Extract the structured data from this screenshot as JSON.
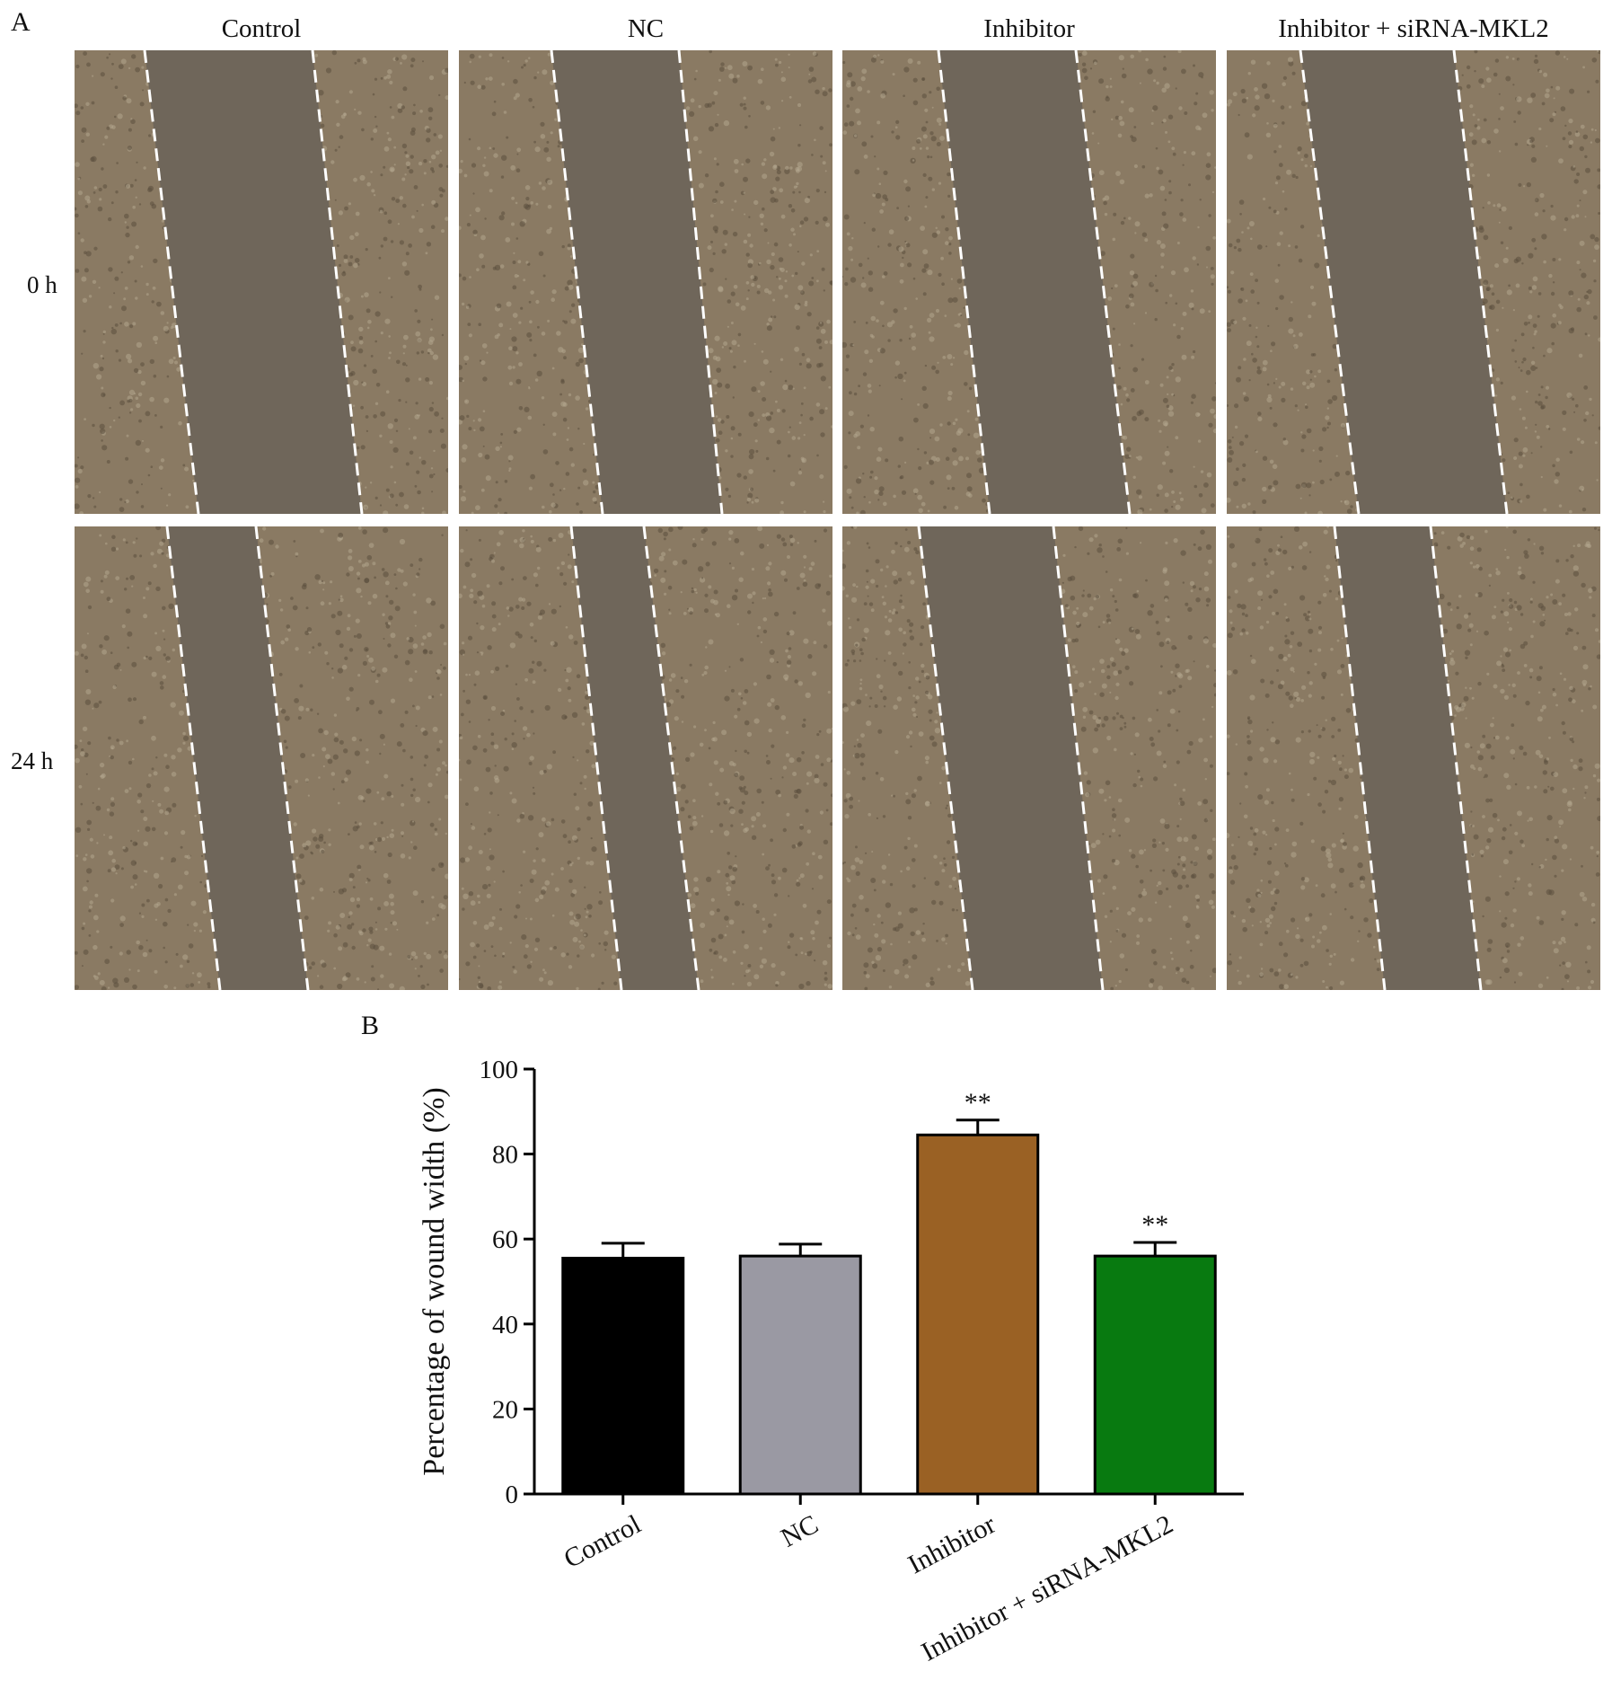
{
  "panel_a": {
    "letter": "A",
    "columns": [
      "Control",
      "NC",
      "Inhibitor",
      "Inhibitor + siRNA-MKL2"
    ],
    "rows": [
      "0 h",
      "24 h"
    ]
  },
  "panel_b": {
    "letter": "B"
  },
  "colors": {
    "culture": "#8a7a63",
    "wound": "#6f665a",
    "dashed_line": "#ffffff"
  },
  "chart_data": {
    "type": "bar",
    "title": "",
    "xlabel": "",
    "ylabel": "Percentage of wound width (%)",
    "categories": [
      "Control",
      "NC",
      "Inhibitor",
      "Inhibitor + siRNA-MKL2"
    ],
    "values": [
      55.5,
      56,
      84.5,
      56
    ],
    "errors": [
      3.5,
      2.8,
      3.5,
      3.2
    ],
    "significance": [
      "",
      "",
      "**",
      "**"
    ],
    "colors": [
      "#000000",
      "#9a99a3",
      "#9a6124",
      "#087a10"
    ],
    "ylim": [
      0,
      100
    ],
    "yticks": [
      0,
      20,
      40,
      60,
      80,
      100
    ],
    "grid": false,
    "legend": "none"
  }
}
